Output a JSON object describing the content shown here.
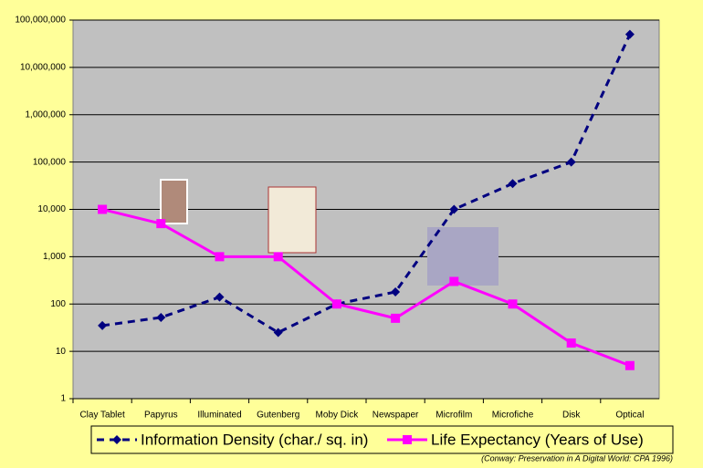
{
  "chart_data": {
    "type": "line",
    "categories": [
      "Clay Tablet",
      "Papyrus",
      "Illuminated",
      "Gutenberg",
      "Moby Dick",
      "Newspaper",
      "Microfilm",
      "Microfiche",
      "Disk",
      "Optical"
    ],
    "series": [
      {
        "name": "Information Density (char./ sq. in)",
        "color": "#000080",
        "line_style": "dashed",
        "marker": "diamond",
        "values": [
          35,
          52,
          140,
          25,
          100,
          180,
          10000,
          35000,
          100000,
          50000000
        ]
      },
      {
        "name": "Life Expectancy (Years of Use)",
        "color": "#ff00ff",
        "line_style": "solid",
        "marker": "square",
        "values": [
          10000,
          5000,
          1000,
          1000,
          100,
          50,
          300,
          100,
          15,
          5
        ]
      }
    ],
    "log_scale": true,
    "ylim": [
      1,
      100000000
    ],
    "yticks": [
      1,
      10,
      100,
      {
        "value": 1000,
        "label": "1,000"
      },
      {
        "value": 10000,
        "label": "10,000"
      },
      {
        "value": 100000,
        "label": "100,000"
      },
      {
        "value": 1000000,
        "label": "1,000,000"
      },
      {
        "value": 10000000,
        "label": "10,000,000"
      },
      {
        "value": 100000000,
        "label": "100,000,000"
      }
    ],
    "grid": true,
    "plot_color": "#c0c0c0",
    "legend": "bottom",
    "note": "(Conway: Preservation in A Digital World: CPA 1996)"
  }
}
